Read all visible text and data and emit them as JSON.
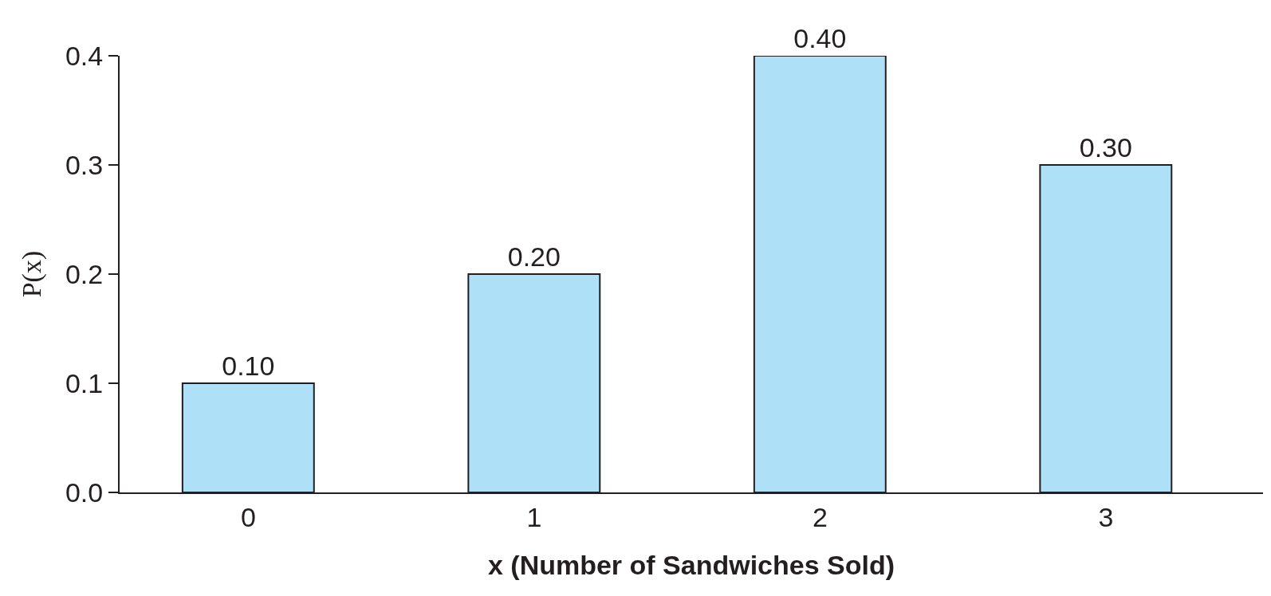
{
  "chart_data": {
    "type": "bar",
    "xlabel": "x (Number of Sandwiches Sold)",
    "ylabel": "P(x)",
    "categories": [
      "0",
      "1",
      "2",
      "3"
    ],
    "values": [
      0.1,
      0.2,
      0.4,
      0.3
    ],
    "value_labels": [
      "0.10",
      "0.20",
      "0.40",
      "0.30"
    ],
    "color": "#aee0f8",
    "ylim": [
      0,
      0.4
    ],
    "yticks": [
      {
        "value": 0,
        "label": "0.0"
      },
      0.1,
      0.2,
      0.3,
      0.4
    ],
    "legend": false
  }
}
